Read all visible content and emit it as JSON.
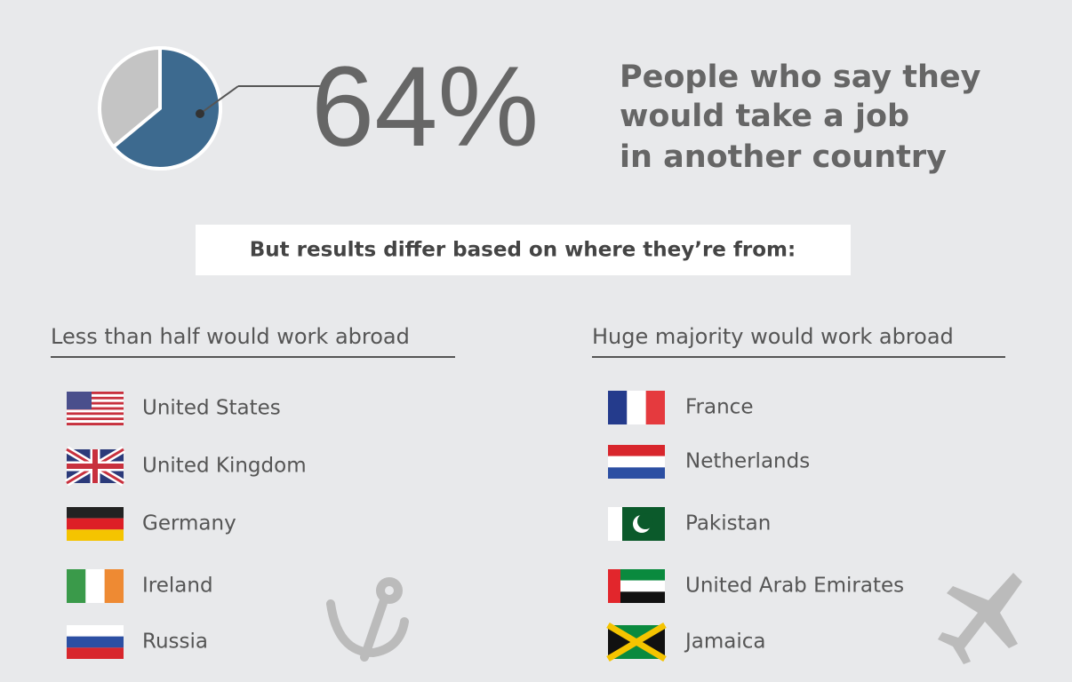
{
  "stat": {
    "value": 64,
    "label": "64%",
    "lines": [
      "People who say they",
      "would take a job",
      "in another country"
    ]
  },
  "banner": "But results differ based on where they’re from:",
  "left": {
    "heading": "Less than half would work abroad",
    "countries": [
      "United States",
      "United Kingdom",
      "Germany",
      "Ireland",
      "Russia"
    ]
  },
  "right": {
    "heading": "Huge majority would work abroad",
    "countries": [
      "France",
      "Netherlands",
      "Pakistan",
      "United Arab Emirates",
      "Jamaica"
    ]
  }
}
